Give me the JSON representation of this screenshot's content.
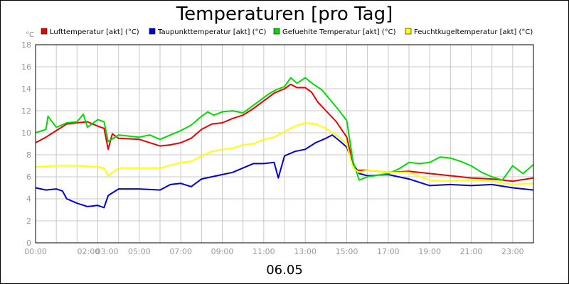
{
  "chart_data": {
    "type": "line",
    "title": "Temperaturen [pro Tag]",
    "ylabel": "°C",
    "xlabel": "06.05",
    "ylim": [
      0,
      18
    ],
    "yticks": [
      0,
      2,
      4,
      6,
      8,
      10,
      12,
      14,
      16,
      18
    ],
    "xlim": [
      0,
      24
    ],
    "xtick_labels": [
      {
        "h": 0,
        "label": "00:00"
      },
      {
        "h": 2.55,
        "label": "02:00"
      },
      {
        "h": 3.45,
        "label": "03:00"
      },
      {
        "h": 5,
        "label": "05:00"
      },
      {
        "h": 7,
        "label": "07:00"
      },
      {
        "h": 9,
        "label": "09:00"
      },
      {
        "h": 11,
        "label": "11:00"
      },
      {
        "h": 13,
        "label": "13:00"
      },
      {
        "h": 15,
        "label": "15:00"
      },
      {
        "h": 17,
        "label": "17:00"
      },
      {
        "h": 19,
        "label": "19:00"
      },
      {
        "h": 21,
        "label": "21:00"
      },
      {
        "h": 23,
        "label": "23:00"
      }
    ],
    "grid": true,
    "legend_position": "top",
    "series": [
      {
        "name": "Lufttemperatur [akt] (°C)",
        "color": "#ee0000",
        "x": [
          0,
          0.5,
          1,
          1.5,
          2,
          2.5,
          3,
          3.3,
          3.5,
          3.7,
          4,
          5,
          6,
          6.5,
          7,
          7.5,
          8,
          8.5,
          9,
          9.5,
          10,
          10.5,
          11,
          11.5,
          12,
          12.3,
          12.6,
          13,
          13.3,
          13.6,
          14,
          14.5,
          15,
          15.3,
          15.5,
          16,
          17,
          18,
          19,
          20,
          21,
          22,
          23,
          24
        ],
        "y": [
          9.1,
          9.6,
          10.2,
          10.8,
          10.9,
          11,
          10.6,
          10.4,
          8.5,
          9.9,
          9.5,
          9.4,
          8.8,
          8.9,
          9.1,
          9.5,
          10.3,
          10.8,
          10.9,
          11.3,
          11.6,
          12.2,
          12.9,
          13.6,
          14,
          14.4,
          14.1,
          14.1,
          13.7,
          12.8,
          12,
          11,
          9.6,
          7.2,
          6.6,
          6.6,
          6.4,
          6.5,
          6.3,
          6.1,
          5.9,
          5.8,
          5.6,
          5.9
        ]
      },
      {
        "name": "Taupunkttemperatur [akt] (°C)",
        "color": "#0000dd",
        "x": [
          0,
          0.5,
          1,
          1.3,
          1.5,
          2,
          2.5,
          3,
          3.3,
          3.5,
          4,
          5,
          6,
          6.5,
          7,
          7.5,
          8,
          8.5,
          9,
          9.5,
          10,
          10.5,
          11,
          11.5,
          11.7,
          12,
          12.5,
          13,
          13.5,
          14,
          14.3,
          14.7,
          15,
          15.3,
          15.6,
          16,
          17,
          18,
          19,
          20,
          21,
          22,
          23,
          24
        ],
        "y": [
          5,
          4.8,
          4.9,
          4.7,
          4,
          3.6,
          3.3,
          3.4,
          3.2,
          4.3,
          4.9,
          4.9,
          4.8,
          5.3,
          5.4,
          5.1,
          5.8,
          6,
          6.2,
          6.4,
          6.8,
          7.2,
          7.2,
          7.3,
          5.9,
          7.9,
          8.3,
          8.5,
          9.1,
          9.5,
          9.8,
          9.2,
          8.7,
          7.2,
          6.3,
          6.1,
          6.2,
          5.8,
          5.2,
          5.3,
          5.2,
          5.3,
          5,
          4.8
        ]
      },
      {
        "name": "Gefuehlte Temperatur [akt] (°C)",
        "color": "#00dd00",
        "x": [
          0,
          0.5,
          0.6,
          1,
          1.5,
          2,
          2.3,
          2.5,
          3,
          3.3,
          3.5,
          4,
          5,
          5.5,
          6,
          6.5,
          7,
          7.5,
          8,
          8.3,
          8.6,
          9,
          9.5,
          10,
          10.5,
          11,
          11.3,
          11.6,
          12,
          12.3,
          12.6,
          13,
          13.4,
          13.8,
          14.2,
          14.6,
          15,
          15.3,
          15.6,
          16,
          17,
          17.5,
          18,
          18.5,
          19,
          19.5,
          20,
          20.5,
          21,
          21.5,
          22,
          22.5,
          23,
          23.5,
          24
        ],
        "y": [
          10,
          10.3,
          11.5,
          10.5,
          10.9,
          11,
          11.7,
          10.5,
          11.2,
          11,
          9.2,
          9.8,
          9.6,
          9.8,
          9.4,
          9.8,
          10.2,
          10.7,
          11.5,
          11.9,
          11.6,
          11.9,
          12,
          11.8,
          12.5,
          13.2,
          13.6,
          13.9,
          14.2,
          15,
          14.5,
          15,
          14.4,
          13.9,
          13,
          12.1,
          11.1,
          7.4,
          5.7,
          6,
          6.3,
          6.7,
          7.3,
          7.2,
          7.3,
          7.8,
          7.7,
          7.4,
          7,
          6.4,
          6,
          5.7,
          7,
          6.3,
          7.1
        ]
      },
      {
        "name": "Feuchtkugeltemperatur [akt] (°C)",
        "color": "#ffff00",
        "x": [
          0,
          1,
          2,
          3,
          3.3,
          3.5,
          4,
          5,
          6,
          7,
          7.5,
          8,
          8.5,
          9,
          9.5,
          10,
          10.5,
          11,
          11.5,
          12,
          12.5,
          13,
          13.5,
          14,
          14.5,
          15,
          15.3,
          15.6,
          16,
          17,
          18,
          19,
          20,
          21,
          22,
          23,
          24
        ],
        "y": [
          6.9,
          7,
          7,
          6.9,
          6.8,
          6.1,
          6.8,
          6.8,
          6.8,
          7.3,
          7.4,
          7.9,
          8.3,
          8.5,
          8.6,
          8.9,
          9,
          9.4,
          9.6,
          10.1,
          10.6,
          10.9,
          10.8,
          10.4,
          9.8,
          9,
          6.8,
          6.4,
          6.6,
          6.4,
          6.4,
          5.7,
          5.6,
          5.7,
          5.6,
          5.3,
          5.4
        ]
      }
    ]
  }
}
